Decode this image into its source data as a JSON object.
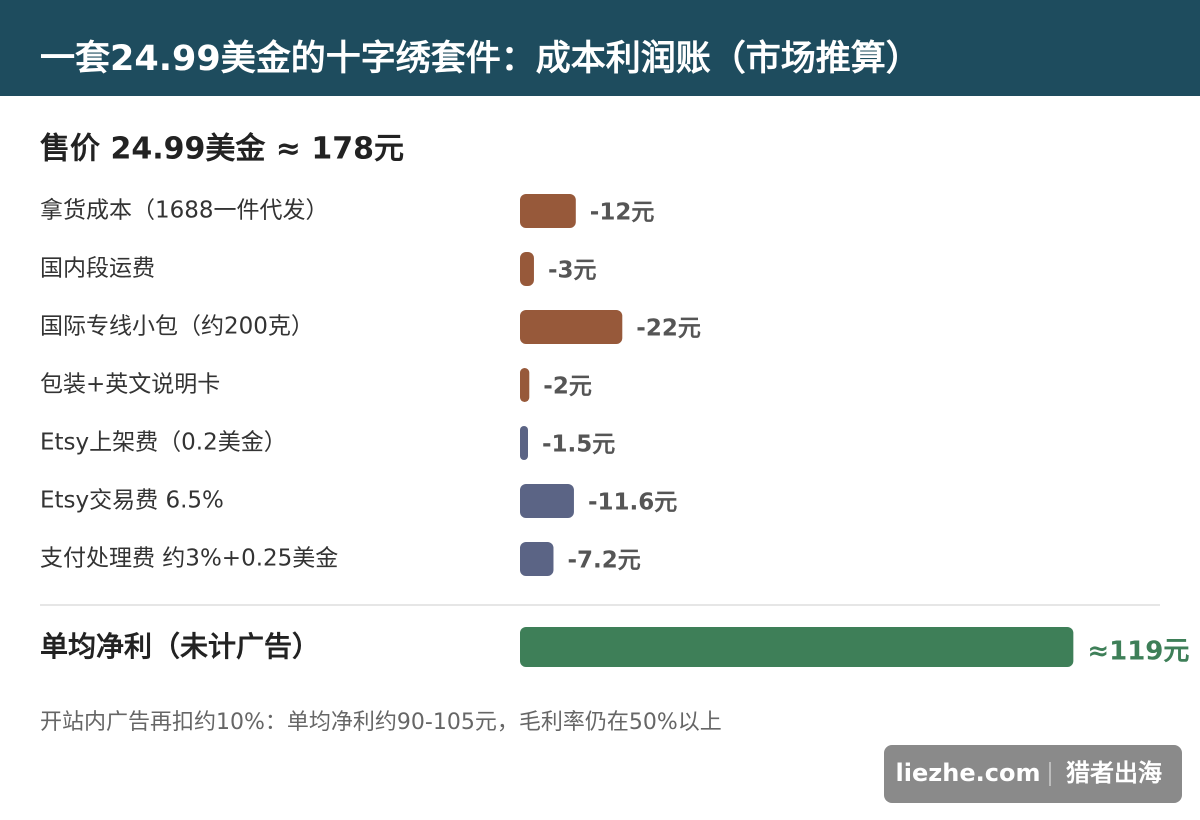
{
  "chart_data": {
    "type": "bar",
    "title": "一套24.99美金的十字绣套件：成本利润账（市场推算）",
    "subtitle": "售价 24.99美金 ≈ 178元",
    "categories": [
      "拿货成本（1688一件代发）",
      "国内段运费",
      "国际专线小包（约200克）",
      "包装+英文说明卡",
      "Etsy上架费（0.2美金）",
      "Etsy交易费 6.5%",
      "支付处理费 约3%+0.25美金"
    ],
    "values": [
      -12,
      -3,
      -22,
      -2,
      -1.5,
      -11.6,
      -7.2
    ],
    "value_labels": [
      "-12元",
      "-3元",
      "-22元",
      "-2元",
      "-1.5元",
      "-11.6元",
      "-7.2元"
    ],
    "colors": [
      "#97593a",
      "#97593a",
      "#97593a",
      "#97593a",
      "#5b6485",
      "#5b6485",
      "#5b6485"
    ],
    "total": {
      "label": "单均净利（未计广告）",
      "value": 119,
      "value_label": "≈119元",
      "color": "#3e7f58"
    },
    "note": "开站内广告再扣约10%：单均净利约90-105元，毛利率仍在50%以上",
    "watermark": {
      "site": "liezhe.com",
      "brand": "猎者出海"
    }
  }
}
